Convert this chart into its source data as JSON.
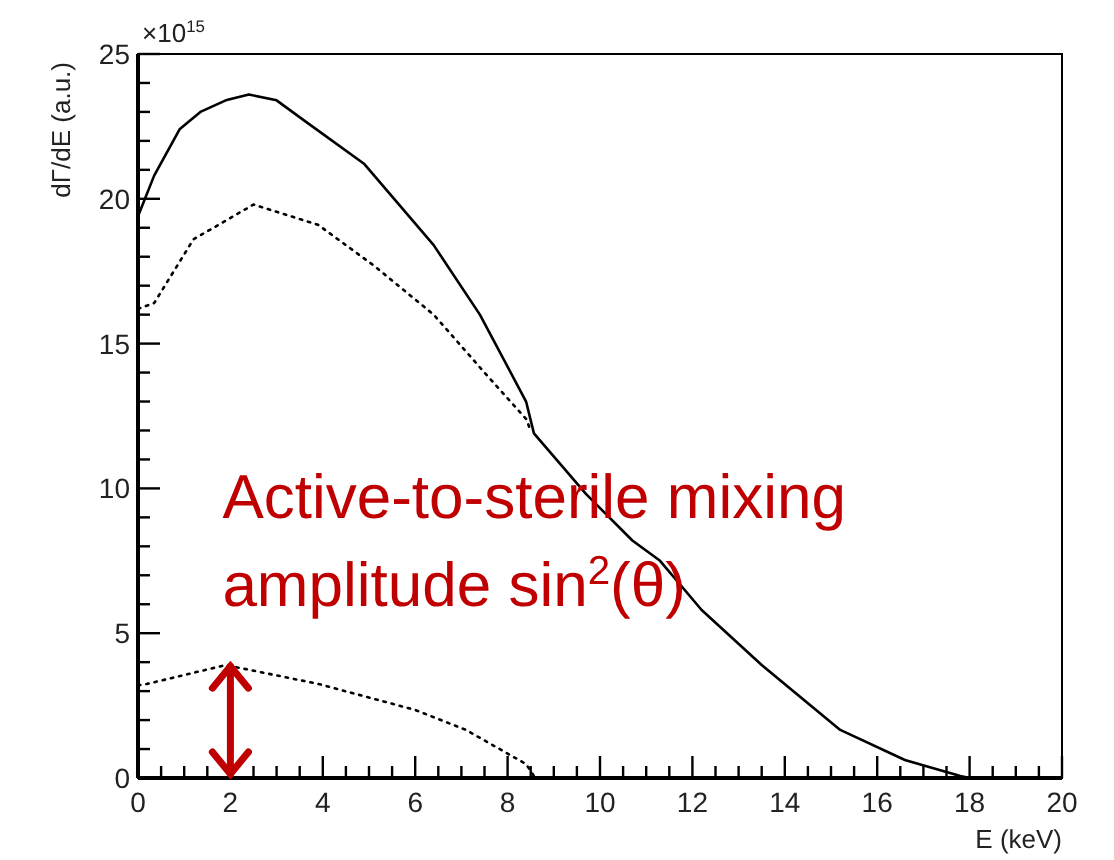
{
  "chart_data": {
    "type": "line",
    "xlabel": "E (keV)",
    "ylabel": "dΓ/dE (a.u.)",
    "xlim": [
      0,
      20
    ],
    "ylim": [
      0,
      25
    ],
    "xticks": [
      0,
      {
        "value": 0.5,
        "label": null
      },
      {
        "value": 1,
        "label": null
      },
      {
        "value": 1.5,
        "label": null
      },
      2,
      {
        "value": 2.5,
        "label": null
      },
      {
        "value": 3,
        "label": null
      },
      {
        "value": 3.5,
        "label": null
      },
      4,
      {
        "value": 4.5,
        "label": null
      },
      {
        "value": 5,
        "label": null
      },
      {
        "value": 5.5,
        "label": null
      },
      6,
      {
        "value": 6.5,
        "label": null
      },
      {
        "value": 7,
        "label": null
      },
      {
        "value": 7.5,
        "label": null
      },
      8,
      {
        "value": 8.5,
        "label": null
      },
      {
        "value": 9,
        "label": null
      },
      {
        "value": 9.5,
        "label": null
      },
      10,
      {
        "value": 10.5,
        "label": null
      },
      {
        "value": 11,
        "label": null
      },
      {
        "value": 11.5,
        "label": null
      },
      12,
      {
        "value": 12.5,
        "label": null
      },
      {
        "value": 13,
        "label": null
      },
      {
        "value": 13.5,
        "label": null
      },
      14,
      {
        "value": 14.5,
        "label": null
      },
      {
        "value": 15,
        "label": null
      },
      {
        "value": 15.5,
        "label": null
      },
      16,
      {
        "value": 16.5,
        "label": null
      },
      {
        "value": 17,
        "label": null
      },
      {
        "value": 17.5,
        "label": null
      },
      18,
      {
        "value": 18.5,
        "label": null
      },
      {
        "value": 19,
        "label": null
      },
      {
        "value": 19.5,
        "label": null
      },
      20
    ],
    "yticks": [
      0,
      {
        "value": 1,
        "label": null
      },
      {
        "value": 2,
        "label": null
      },
      {
        "value": 3,
        "label": null
      },
      {
        "value": 4,
        "label": null
      },
      5,
      {
        "value": 6,
        "label": null
      },
      {
        "value": 7,
        "label": null
      },
      {
        "value": 8,
        "label": null
      },
      {
        "value": 9,
        "label": null
      },
      10,
      {
        "value": 11,
        "label": null
      },
      {
        "value": 12,
        "label": null
      },
      {
        "value": 13,
        "label": null
      },
      {
        "value": 14,
        "label": null
      },
      15,
      {
        "value": 16,
        "label": null
      },
      {
        "value": 17,
        "label": null
      },
      {
        "value": 18,
        "label": null
      },
      {
        "value": 19,
        "label": null
      },
      20,
      {
        "value": 21,
        "label": null
      },
      {
        "value": 22,
        "label": null
      },
      {
        "value": 23,
        "label": null
      },
      {
        "value": 24,
        "label": null
      },
      25
    ],
    "grid": false,
    "series": [
      {
        "color": "#000000",
        "line_style": "solid",
        "x": [
          0,
          0.35,
          0.9,
          1.35,
          1.9,
          2.4,
          3,
          3.6,
          4.9,
          6.4,
          7.4,
          8.4,
          8.57,
          9.7,
          10.7,
          11.3,
          12.2,
          13.5,
          15.2,
          16.6,
          17.8,
          18
        ],
        "values": [
          19.4,
          20.8,
          22.4,
          23.0,
          23.4,
          23.6,
          23.4,
          22.7,
          21.2,
          18.4,
          16.0,
          13.0,
          11.9,
          9.8,
          8.2,
          7.5,
          5.8,
          3.9,
          1.66,
          0.62,
          0.07,
          0
        ]
      },
      {
        "color": "#000000",
        "line_style": "dotted",
        "x": [
          0,
          0.35,
          1.2,
          2.5,
          3.9,
          5.1,
          6.4,
          7.5,
          8.4,
          8.5
        ],
        "values": [
          16.2,
          16.4,
          18.6,
          19.8,
          19.1,
          17.7,
          16.0,
          14.0,
          12.4,
          12.0
        ]
      },
      {
        "color": "#000000",
        "line_style": "dotted",
        "x": [
          0,
          0.2,
          1.9,
          3.9,
          6.0,
          7.1,
          8.4,
          8.6
        ],
        "values": [
          3.2,
          3.25,
          3.9,
          3.25,
          2.35,
          1.66,
          0.48,
          0
        ]
      }
    ],
    "annotations": [
      "×10$^{15}$",
      {
        "text": "Active-to-sterile mixing amplitude sin$^{2}$(θ)",
        "x": 2,
        "y": 4
      }
    ]
  }
}
